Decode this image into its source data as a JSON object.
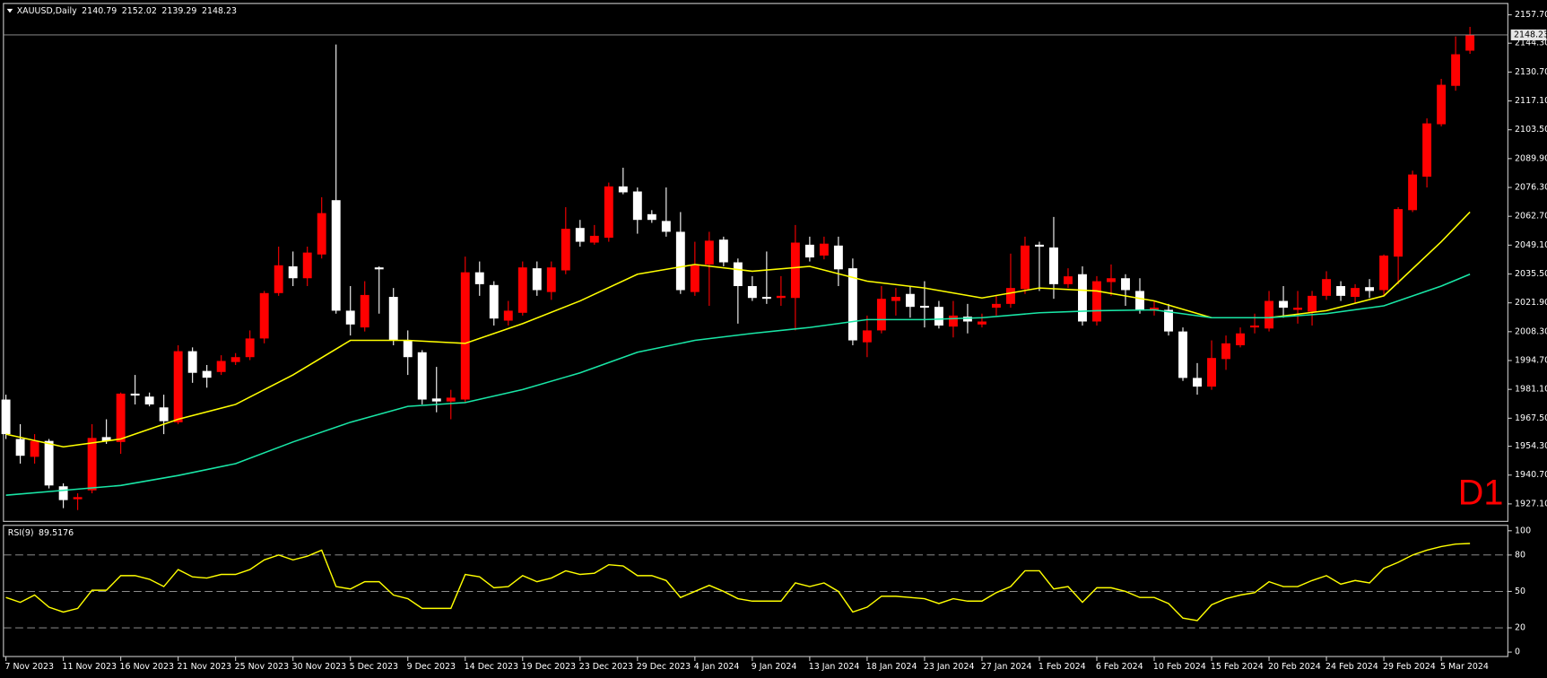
{
  "chart_data": [
    {
      "type": "candlestick",
      "title": "XAUUSD,Daily",
      "categories": [
        "7 Nov 2023",
        null,
        null,
        null,
        "11 Nov 2023",
        null,
        null,
        null,
        "16 Nov 2023",
        null,
        null,
        null,
        "21 Nov 2023",
        null,
        null,
        null,
        "25 Nov 2023",
        null,
        null,
        null,
        "30 Nov 2023",
        null,
        null,
        null,
        "5 Dec 2023",
        null,
        null,
        null,
        "9 Dec 2023",
        null,
        null,
        null,
        "14 Dec 2023",
        null,
        null,
        null,
        "19 Dec 2023",
        null,
        null,
        null,
        "23 Dec 2023",
        null,
        null,
        null,
        "29 Dec 2023",
        null,
        null,
        null,
        "4 Jan 2024",
        null,
        null,
        null,
        "9 Jan 2024",
        null,
        null,
        null,
        "13 Jan 2024",
        null,
        null,
        null,
        "18 Jan 2024",
        null,
        null,
        null,
        "23 Jan 2024",
        null,
        null,
        null,
        "27 Jan 2024",
        null,
        null,
        null,
        "1 Feb 2024",
        null,
        null,
        null,
        "6 Feb 2024",
        null,
        null,
        null,
        "10 Feb 2024",
        null,
        null,
        null,
        "15 Feb 2024",
        null,
        null,
        null,
        "20 Feb 2024",
        null,
        null,
        null,
        "24 Feb 2024",
        null,
        null,
        null,
        "29 Feb 2024",
        null,
        null,
        null,
        "5 Mar 2024",
        null,
        null
      ],
      "open": [
        1976.3,
        1957.7,
        1949.3,
        1956.8,
        1935.4,
        1929.3,
        1933.5,
        1958.6,
        1956.3,
        1979.1,
        1977.7,
        1972.6,
        1965.6,
        1999.1,
        1989.8,
        1989.3,
        1994.0,
        1996.3,
        2005.1,
        2026.5,
        2039.1,
        2033.5,
        2044.7,
        2070.3,
        2018.2,
        2010.3,
        2038.6,
        2024.7,
        2004.2,
        1998.6,
        1976.8,
        1975.4,
        1976.3,
        2036.3,
        2030.3,
        2013.5,
        2017.2,
        2038.2,
        2027.0,
        2037.2,
        2057.2,
        2050.3,
        2052.6,
        2076.8,
        2074.4,
        2063.7,
        2060.5,
        2055.4,
        2027.0,
        2040.0,
        2051.7,
        2041.0,
        2029.8,
        2024.7,
        2024.2,
        2024.2,
        2049.3,
        2044.2,
        2048.9,
        2038.2,
        2003.3,
        2008.9,
        2022.8,
        2026.1,
        2020.5,
        2020.0,
        2010.7,
        2015.4,
        2011.7,
        2019.6,
        2021.4,
        2028.4,
        2049.3,
        2048.0,
        2030.7,
        2035.4,
        2013.1,
        2031.7,
        2033.5,
        2027.5,
        2018.2,
        2018.6,
        2008.4,
        1986.5,
        1982.4,
        1995.4,
        2001.9,
        2010.3,
        2009.8,
        2022.8,
        2018.6,
        2017.7,
        2025.2,
        2029.8,
        2024.7,
        2029.3,
        2027.9,
        2043.7,
        2065.6,
        2081.4,
        2106.1,
        2124.2,
        2140.79
      ],
      "high": [
        1978.6,
        1964.7,
        1960.0,
        1957.7,
        1936.8,
        1932.1,
        1964.7,
        1967.0,
        1979.6,
        1987.9,
        1979.6,
        1978.6,
        2001.9,
        2000.9,
        1992.6,
        1997.2,
        1998.2,
        2008.9,
        2027.5,
        2048.4,
        2046.1,
        2048.4,
        2071.7,
        2143.7,
        2029.8,
        2032.1,
        2039.1,
        2028.9,
        2008.9,
        1999.6,
        1991.7,
        1980.9,
        2043.7,
        2041.4,
        2032.1,
        2022.8,
        2041.4,
        2041.4,
        2041.4,
        2067.0,
        2061.0,
        2058.6,
        2078.6,
        2085.6,
        2076.3,
        2065.6,
        2076.3,
        2064.7,
        2050.7,
        2055.4,
        2053.1,
        2042.8,
        2034.5,
        2046.1,
        2034.5,
        2058.6,
        2053.1,
        2053.1,
        2053.1,
        2042.8,
        2015.9,
        2029.8,
        2028.9,
        2029.8,
        2032.1,
        2022.8,
        2022.8,
        2021.4,
        2016.8,
        2025.2,
        2045.1,
        2053.1,
        2050.7,
        2062.4,
        2038.2,
        2039.1,
        2034.5,
        2040.0,
        2035.4,
        2033.5,
        2022.8,
        2021.4,
        2010.3,
        1993.5,
        2004.2,
        2006.5,
        2010.3,
        2016.8,
        2027.5,
        2029.8,
        2027.5,
        2027.5,
        2036.8,
        2032.1,
        2030.7,
        2033.1,
        2044.7,
        2067.0,
        2084.2,
        2108.9,
        2127.5,
        2147.5,
        2152.02
      ],
      "low": [
        1957.7,
        1946.1,
        1946.1,
        1934.4,
        1925.1,
        1924.2,
        1932.1,
        1955.4,
        1950.7,
        1974.0,
        1973.1,
        1960.0,
        1964.7,
        1984.2,
        1981.9,
        1987.9,
        1992.6,
        1994.9,
        2002.8,
        2025.2,
        2029.8,
        2029.8,
        2042.8,
        2016.8,
        2006.5,
        2008.4,
        2016.8,
        2001.9,
        1987.9,
        1974.0,
        1970.3,
        1967.0,
        1974.9,
        2025.2,
        2011.2,
        2011.2,
        2015.9,
        2025.2,
        2023.3,
        2035.4,
        2048.4,
        2049.3,
        2050.7,
        2073.1,
        2054.5,
        2059.6,
        2053.1,
        2026.1,
        2025.2,
        2020.5,
        2039.1,
        2012.1,
        2022.8,
        2021.4,
        2020.5,
        2008.9,
        2041.4,
        2042.4,
        2029.8,
        2001.9,
        1996.3,
        2007.5,
        2015.9,
        2014.9,
        2010.3,
        2009.8,
        2005.6,
        2007.5,
        2010.3,
        2015.9,
        2019.6,
        2026.1,
        2027.5,
        2023.8,
        2028.9,
        2011.2,
        2011.2,
        2025.2,
        2020.5,
        2016.8,
        2015.9,
        2006.5,
        1985.1,
        1978.6,
        1980.9,
        1990.3,
        2000.9,
        2007.5,
        2008.4,
        2014.9,
        2012.1,
        2011.2,
        2023.3,
        2022.8,
        2021.9,
        2024.2,
        2025.2,
        2030.7,
        2064.7,
        2076.3,
        2105.1,
        2121.9,
        2139.29
      ],
      "close": [
        1960.0,
        1949.8,
        1956.8,
        1935.8,
        1928.9,
        1930.3,
        1958.2,
        1956.8,
        1979.1,
        1978.2,
        1974.0,
        1966.1,
        1999.1,
        1988.9,
        1986.6,
        1994.5,
        1996.3,
        2005.1,
        2026.5,
        2039.6,
        2033.5,
        2045.6,
        2064.2,
        2018.2,
        2011.7,
        2025.6,
        2037.7,
        2004.2,
        1996.3,
        1976.3,
        1975.4,
        1977.2,
        2036.3,
        2030.7,
        2014.5,
        2018.2,
        2038.6,
        2027.9,
        2038.6,
        2056.8,
        2050.7,
        2053.5,
        2076.8,
        2074.0,
        2061.0,
        2061.0,
        2055.4,
        2027.9,
        2039.6,
        2051.2,
        2041.0,
        2029.8,
        2024.2,
        2023.8,
        2025.2,
        2050.3,
        2043.3,
        2049.8,
        2037.7,
        2004.2,
        2008.9,
        2023.8,
        2024.7,
        2020.0,
        2019.6,
        2011.2,
        2015.9,
        2013.1,
        2013.1,
        2021.4,
        2028.9,
        2048.9,
        2048.4,
        2030.7,
        2034.4,
        2013.1,
        2032.1,
        2033.5,
        2027.9,
        2018.2,
        2019.6,
        2008.4,
        1986.5,
        1982.4,
        1995.9,
        2002.8,
        2007.5,
        2011.2,
        2022.8,
        2019.6,
        2019.6,
        2025.2,
        2033.1,
        2025.2,
        2028.9,
        2027.5,
        2044.2,
        2066.1,
        2082.4,
        2106.5,
        2124.7,
        2139.1,
        2148.23
      ],
      "up_color": "#ff0000",
      "down_color": "#ffffff",
      "ylim": [
        1919.1,
        2162.4
      ],
      "yticks": [
        {
          "value": 2157.7,
          "label": "2157.70"
        },
        {
          "value": 2144.3,
          "label": "2144.30"
        },
        {
          "value": 2130.7,
          "label": "2130.70"
        },
        {
          "value": 2117.1,
          "label": "2117.10"
        },
        {
          "value": 2103.5,
          "label": "2103.50"
        },
        {
          "value": 2089.9,
          "label": "2089.90"
        },
        {
          "value": 2076.3,
          "label": "2076.30"
        },
        {
          "value": 2062.7,
          "label": "2062.70"
        },
        {
          "value": 2049.1,
          "label": "2049.10"
        },
        {
          "value": 2035.5,
          "label": "2035.50"
        },
        {
          "value": 2021.9,
          "label": "2021.90"
        },
        {
          "value": 2008.3,
          "label": "2008.30"
        },
        {
          "value": 1994.7,
          "label": "1994.70"
        },
        {
          "value": 1981.1,
          "label": "1981.10"
        },
        {
          "value": 1967.5,
          "label": "1967.50"
        },
        {
          "value": 1954.3,
          "label": "1954.30"
        },
        {
          "value": 1940.7,
          "label": "1940.70"
        },
        {
          "value": 1927.1,
          "label": "1927.10"
        }
      ],
      "last_price_line": true,
      "overlays": [
        {
          "type": "line",
          "color": "#ffff00",
          "x": [
            0,
            4,
            8,
            12,
            16,
            20,
            24,
            28,
            32,
            36,
            40,
            44,
            48,
            52,
            56,
            60,
            64,
            68,
            72,
            76,
            80,
            84,
            88,
            92,
            96,
            100,
            102
          ],
          "values": [
            1960.0,
            1954.0,
            1957.7,
            1967.0,
            1974.0,
            1987.9,
            2004.2,
            2004.2,
            2002.8,
            2012.1,
            2022.8,
            2035.4,
            2040.0,
            2036.8,
            2039.1,
            2032.1,
            2028.9,
            2024.2,
            2028.9,
            2027.5,
            2022.8,
            2014.9,
            2014.9,
            2018.2,
            2025.2,
            2050.7,
            2064.7
          ]
        },
        {
          "type": "line",
          "color": "#19e6a6",
          "x": [
            0,
            4,
            8,
            12,
            16,
            20,
            24,
            28,
            32,
            36,
            40,
            44,
            48,
            52,
            56,
            60,
            64,
            68,
            72,
            76,
            80,
            84,
            88,
            92,
            96,
            100,
            102
          ],
          "values": [
            1931.2,
            1933.5,
            1935.8,
            1940.5,
            1946.1,
            1956.3,
            1965.6,
            1973.1,
            1974.9,
            1981.0,
            1988.9,
            1998.6,
            2004.2,
            2007.5,
            2010.3,
            2014.0,
            2014.0,
            2014.9,
            2017.2,
            2018.2,
            2018.6,
            2014.9,
            2014.9,
            2016.8,
            2020.5,
            2029.8,
            2035.4
          ]
        }
      ],
      "label": "D1",
      "label_color": "#ff0000"
    },
    {
      "type": "line",
      "title": "RSI(9)",
      "values": [
        45,
        41,
        47,
        37,
        33,
        36,
        51,
        51,
        63,
        63,
        60,
        54,
        68,
        62,
        61,
        64,
        64,
        68,
        76,
        80,
        76,
        79,
        84,
        54,
        52,
        58,
        58,
        47,
        44,
        36,
        36,
        36,
        64,
        62,
        53,
        54,
        63,
        58,
        61,
        67,
        64,
        65,
        72,
        71,
        63,
        63,
        59,
        45,
        50,
        55,
        50,
        44,
        42,
        42,
        42,
        57,
        54,
        57,
        50,
        33,
        37,
        46,
        46,
        45,
        44,
        40,
        44,
        42,
        42,
        49,
        54,
        67,
        67,
        52,
        54,
        41,
        53,
        53,
        50,
        45,
        45,
        40,
        28,
        26,
        39,
        44,
        47,
        49,
        58,
        54,
        54,
        59,
        63,
        56,
        59,
        57,
        69,
        74,
        80,
        84,
        87,
        89,
        89.5176
      ],
      "color": "#ffff00",
      "ylim": [
        0,
        100
      ],
      "yticks": [
        0,
        20,
        50,
        80,
        100
      ]
    }
  ]
}
